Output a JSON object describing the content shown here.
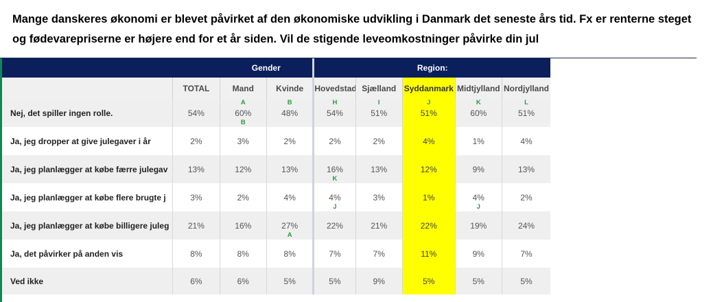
{
  "question": "Mange danskeres økonomi er blevet påvirket af den økonomiske udvikling i Danmark det seneste års tid. Fx er renterne steget og fødevarepriserne er højere end for et år siden. Vil de stigende leveomkostninger påvirke din jul",
  "banner": {
    "gender": "Gender",
    "region": "Region:"
  },
  "columns": [
    "TOTAL",
    "Mand",
    "Kvinde",
    "Hovedstaden",
    "Sjælland",
    "Syddanmark",
    "Midtjylland",
    "Nordjylland"
  ],
  "column_letters": [
    "",
    "A",
    "B",
    "H",
    "I",
    "J",
    "K",
    "L"
  ],
  "highlight_color": "#ffff00",
  "header_color": "#0b1f5c",
  "significance_color": "#2a9d3a",
  "rows": [
    {
      "label": "Nej, det spiller ingen rolle.",
      "values": [
        "54%",
        "60%",
        "48%",
        "54%",
        "51%",
        "51%",
        "60%",
        "51%"
      ],
      "sig_under": [
        "",
        "B",
        "",
        "",
        "",
        "",
        "",
        ""
      ]
    },
    {
      "label": "Ja, jeg dropper at give julegaver i år",
      "values": [
        "2%",
        "3%",
        "2%",
        "2%",
        "2%",
        "4%",
        "1%",
        "4%"
      ],
      "sig_under": [
        "",
        "",
        "",
        "",
        "",
        "",
        "",
        ""
      ]
    },
    {
      "label": "Ja, jeg planlægger at købe færre julegav",
      "values": [
        "13%",
        "12%",
        "13%",
        "16%",
        "13%",
        "12%",
        "9%",
        "13%"
      ],
      "sig_under": [
        "",
        "",
        "",
        "K",
        "",
        "",
        "",
        ""
      ]
    },
    {
      "label": "Ja, jeg planlægger at købe flere brugte j",
      "values": [
        "3%",
        "2%",
        "4%",
        "4%",
        "3%",
        "1%",
        "4%",
        "2%"
      ],
      "sig_under": [
        "",
        "",
        "",
        "J",
        "",
        "",
        "J",
        ""
      ]
    },
    {
      "label": "Ja, jeg planlægger at købe billigere juleg",
      "values": [
        "21%",
        "16%",
        "27%",
        "22%",
        "21%",
        "22%",
        "19%",
        "24%"
      ],
      "sig_under": [
        "",
        "",
        "A",
        "",
        "",
        "",
        "",
        ""
      ]
    },
    {
      "label": "Ja, det påvirker på anden vis",
      "values": [
        "8%",
        "8%",
        "8%",
        "7%",
        "7%",
        "11%",
        "9%",
        "7%"
      ],
      "sig_under": [
        "",
        "",
        "",
        "",
        "",
        "",
        "",
        ""
      ]
    },
    {
      "label": "Ved ikke",
      "values": [
        "6%",
        "6%",
        "5%",
        "5%",
        "9%",
        "5%",
        "5%",
        "5%"
      ],
      "sig_under": [
        "",
        "",
        "",
        "",
        "",
        "",
        "",
        ""
      ]
    }
  ]
}
